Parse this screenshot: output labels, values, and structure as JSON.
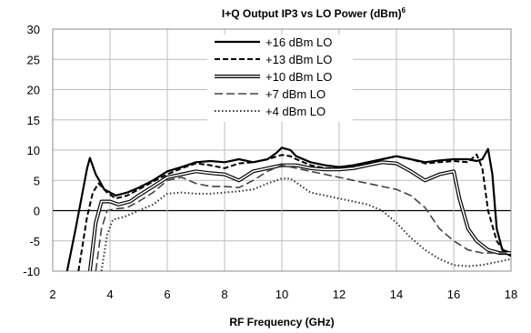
{
  "chart_data": {
    "type": "line",
    "title": "I+Q Output IP3 vs LO Power (dBm)",
    "title_superscript": "6",
    "xlabel": "RF Frequency  (GHz)",
    "ylabel": "",
    "xlim": [
      2,
      18
    ],
    "ylim": [
      -10,
      30
    ],
    "xticks": [
      2,
      4,
      6,
      8,
      10,
      12,
      14,
      16,
      18
    ],
    "yticks": [
      -10,
      -5,
      0,
      5,
      10,
      15,
      20,
      25,
      30
    ],
    "grid": true,
    "legend_position": "top-center",
    "series": [
      {
        "name": "+16 dBm LO",
        "style": "solid",
        "points": [
          [
            2.5,
            -10
          ],
          [
            2.8,
            -3
          ],
          [
            3.0,
            2
          ],
          [
            3.2,
            7
          ],
          [
            3.3,
            8.7
          ],
          [
            3.5,
            6
          ],
          [
            3.8,
            3.5
          ],
          [
            4.2,
            2.5
          ],
          [
            4.6,
            3
          ],
          [
            5,
            3.8
          ],
          [
            5.5,
            5
          ],
          [
            6,
            6.5
          ],
          [
            6.5,
            7.2
          ],
          [
            7,
            8
          ],
          [
            7.5,
            8.2
          ],
          [
            8,
            8
          ],
          [
            8.5,
            8.5
          ],
          [
            9,
            8
          ],
          [
            9.5,
            8.5
          ],
          [
            9.8,
            9.5
          ],
          [
            10,
            10.4
          ],
          [
            10.3,
            10
          ],
          [
            10.5,
            9
          ],
          [
            11,
            8
          ],
          [
            11.5,
            7.5
          ],
          [
            12,
            7.2
          ],
          [
            12.5,
            7.5
          ],
          [
            13,
            8
          ],
          [
            13.5,
            8.5
          ],
          [
            14,
            9
          ],
          [
            14.5,
            8.5
          ],
          [
            15,
            8
          ],
          [
            15.5,
            8.3
          ],
          [
            16,
            8.5
          ],
          [
            16.5,
            8.5
          ],
          [
            16.8,
            8.2
          ],
          [
            17,
            8.5
          ],
          [
            17.2,
            10.2
          ],
          [
            17.35,
            6
          ],
          [
            17.5,
            -3
          ],
          [
            17.7,
            -6.5
          ],
          [
            18,
            -7
          ]
        ]
      },
      {
        "name": "+13 dBm LO",
        "style": "dash",
        "points": [
          [
            2.9,
            -10
          ],
          [
            3.2,
            -1
          ],
          [
            3.4,
            3
          ],
          [
            3.6,
            4.5
          ],
          [
            3.9,
            3
          ],
          [
            4.2,
            2
          ],
          [
            4.6,
            2.5
          ],
          [
            5,
            3.5
          ],
          [
            5.5,
            4.8
          ],
          [
            6,
            6
          ],
          [
            6.5,
            7
          ],
          [
            7,
            7.8
          ],
          [
            7.5,
            7.5
          ],
          [
            8,
            7
          ],
          [
            8.5,
            7.8
          ],
          [
            9,
            8
          ],
          [
            9.5,
            8.5
          ],
          [
            10,
            9.2
          ],
          [
            10.3,
            9
          ],
          [
            10.5,
            8.5
          ],
          [
            11,
            7.5
          ],
          [
            11.5,
            7
          ],
          [
            12,
            7
          ],
          [
            12.5,
            7.3
          ],
          [
            13,
            7.8
          ],
          [
            13.5,
            8.5
          ],
          [
            14,
            9
          ],
          [
            14.5,
            8.5
          ],
          [
            15,
            7.8
          ],
          [
            15.5,
            8
          ],
          [
            16,
            8.2
          ],
          [
            16.5,
            8
          ],
          [
            16.8,
            9.3
          ],
          [
            17,
            7
          ],
          [
            17.2,
            0
          ],
          [
            17.5,
            -5
          ],
          [
            17.8,
            -7
          ],
          [
            18,
            -7.5
          ]
        ]
      },
      {
        "name": "+10 dBm LO",
        "style": "double",
        "points": [
          [
            3.3,
            -10
          ],
          [
            3.5,
            -2
          ],
          [
            3.7,
            1.5
          ],
          [
            4,
            1.5
          ],
          [
            4.3,
            1
          ],
          [
            4.7,
            1.5
          ],
          [
            5,
            2.5
          ],
          [
            5.5,
            4
          ],
          [
            6,
            5.5
          ],
          [
            6.5,
            6
          ],
          [
            7,
            6.5
          ],
          [
            7.5,
            6.2
          ],
          [
            8,
            6
          ],
          [
            8.5,
            5
          ],
          [
            9,
            6.5
          ],
          [
            9.5,
            7
          ],
          [
            10,
            7.5
          ],
          [
            10.5,
            7.5
          ],
          [
            11,
            7
          ],
          [
            11.5,
            6.8
          ],
          [
            12,
            6.8
          ],
          [
            12.5,
            7
          ],
          [
            13,
            7.5
          ],
          [
            13.5,
            8
          ],
          [
            14,
            7.8
          ],
          [
            14.5,
            6.5
          ],
          [
            15,
            5
          ],
          [
            15.5,
            6
          ],
          [
            16,
            6.5
          ],
          [
            16.2,
            2
          ],
          [
            16.5,
            -3
          ],
          [
            16.8,
            -5
          ],
          [
            17.2,
            -6.5
          ],
          [
            17.6,
            -7
          ],
          [
            18,
            -7
          ]
        ]
      },
      {
        "name": "+7 dBm LO",
        "style": "longdash",
        "points": [
          [
            3.5,
            -10
          ],
          [
            3.7,
            -3
          ],
          [
            3.9,
            0
          ],
          [
            4.2,
            0.3
          ],
          [
            4.6,
            0.5
          ],
          [
            5,
            1.5
          ],
          [
            5.5,
            3
          ],
          [
            6,
            5
          ],
          [
            6.5,
            5.5
          ],
          [
            7,
            4.5
          ],
          [
            7.5,
            4
          ],
          [
            8,
            4
          ],
          [
            8.5,
            3.8
          ],
          [
            9,
            5
          ],
          [
            9.5,
            6.5
          ],
          [
            10,
            7.5
          ],
          [
            10.5,
            7
          ],
          [
            11,
            6.5
          ],
          [
            11.5,
            6
          ],
          [
            12,
            5.5
          ],
          [
            12.5,
            5
          ],
          [
            13,
            4.5
          ],
          [
            13.5,
            4
          ],
          [
            14,
            3.5
          ],
          [
            14.5,
            2.5
          ],
          [
            15,
            0.5
          ],
          [
            15.5,
            -3
          ],
          [
            16,
            -5
          ],
          [
            16.5,
            -6.5
          ],
          [
            17,
            -7
          ],
          [
            17.5,
            -7
          ],
          [
            18,
            -7
          ]
        ]
      },
      {
        "name": "+4 dBm LO",
        "style": "dot",
        "points": [
          [
            3.7,
            -10
          ],
          [
            3.9,
            -4
          ],
          [
            4.1,
            -1.5
          ],
          [
            4.5,
            -1
          ],
          [
            5,
            0
          ],
          [
            5.5,
            1
          ],
          [
            6,
            2.8
          ],
          [
            6.5,
            3
          ],
          [
            7,
            2.8
          ],
          [
            7.5,
            2.8
          ],
          [
            8,
            3
          ],
          [
            8.5,
            3.2
          ],
          [
            9,
            3.5
          ],
          [
            9.5,
            4.5
          ],
          [
            10,
            5.3
          ],
          [
            10.3,
            5.3
          ],
          [
            10.7,
            4
          ],
          [
            11,
            3
          ],
          [
            11.5,
            2.5
          ],
          [
            12,
            2
          ],
          [
            12.5,
            1.5
          ],
          [
            13,
            1
          ],
          [
            13.5,
            0
          ],
          [
            14,
            -2
          ],
          [
            14.5,
            -4.5
          ],
          [
            15,
            -6.5
          ],
          [
            15.5,
            -8
          ],
          [
            16,
            -9
          ],
          [
            16.5,
            -9.2
          ],
          [
            17,
            -9
          ],
          [
            17.5,
            -8.5
          ],
          [
            18,
            -8
          ]
        ]
      }
    ]
  }
}
